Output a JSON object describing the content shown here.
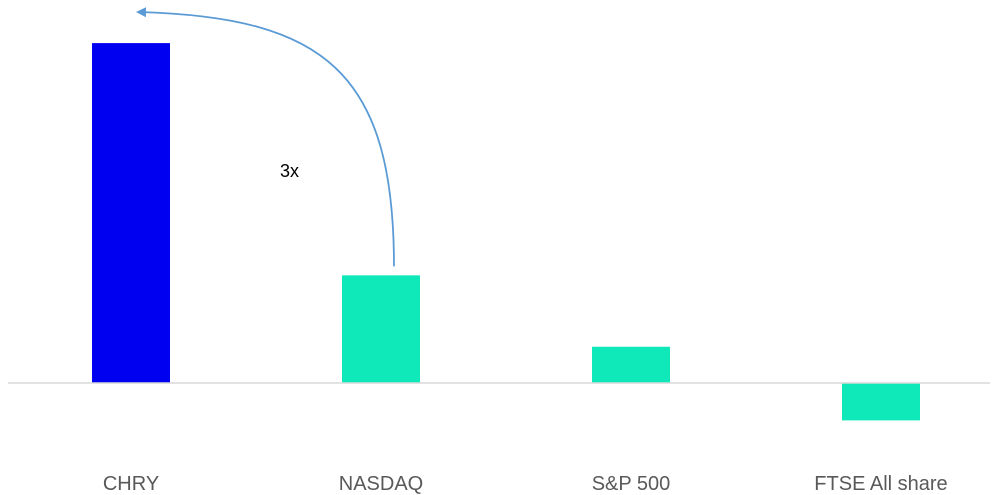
{
  "chart_data": {
    "type": "bar",
    "title": "",
    "xlabel": "",
    "ylabel": "",
    "categories": [
      "CHRY",
      "NASDAQ",
      "S&P 500",
      "FTSE All share"
    ],
    "values": [
      3.0,
      0.95,
      0.32,
      -0.33
    ],
    "colors": [
      "#0000f0",
      "#0fe8b8",
      "#0fe8b8",
      "#0fe8b8"
    ],
    "ylim": [
      -1.0,
      3.5
    ],
    "grid": false,
    "legend": "none",
    "axis_color": "#d9d9d9",
    "annotation": {
      "text": "3x",
      "arrow_from": "NASDAQ",
      "arrow_to": "CHRY",
      "color": "#5b9bd5"
    }
  }
}
